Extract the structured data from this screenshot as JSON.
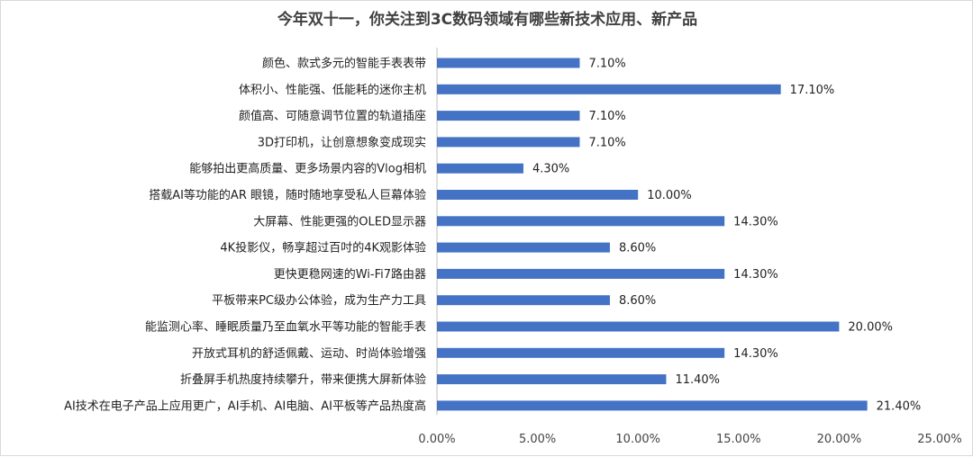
{
  "chart_data": {
    "type": "bar",
    "orientation": "horizontal",
    "title": "今年双十一，你关注到3C数码领域有哪些新技术应用、新产品",
    "categories": [
      "颜色、款式多元的智能手表表带",
      "体积小、性能强、低能耗的迷你主机",
      "颜值高、可随意调节位置的轨道插座",
      "3D打印机，让创意想象变成现实",
      "能够拍出更高质量、更多场景内容的Vlog相机",
      "搭载AI等功能的AR 眼镜，随时随地享受私人巨幕体验",
      "大屏幕、性能更强的OLED显示器",
      "4K投影仪，畅享超过百吋的4K观影体验",
      "更快更稳网速的Wi-Fi7路由器",
      "平板带来PC级办公体验，成为生产力工具",
      "能监测心率、睡眠质量乃至血氧水平等功能的智能手表",
      "开放式耳机的舒适佩戴、运动、时尚体验增强",
      "折叠屏手机热度持续攀升，带来便携大屏新体验",
      "AI技术在电子产品上应用更广，AI手机、AI电脑、AI平板等产品热度高"
    ],
    "values": [
      7.1,
      17.1,
      7.1,
      7.1,
      4.3,
      10.0,
      14.3,
      8.6,
      14.3,
      8.6,
      20.0,
      14.3,
      11.4,
      21.4
    ],
    "value_labels": [
      "7.10%",
      "17.10%",
      "7.10%",
      "7.10%",
      "4.30%",
      "10.00%",
      "14.30%",
      "8.60%",
      "14.30%",
      "8.60%",
      "20.00%",
      "14.30%",
      "11.40%",
      "21.40%"
    ],
    "x_ticks": [
      "0.00%",
      "5.00%",
      "10.00%",
      "15.00%",
      "20.00%",
      "25.00%"
    ],
    "xlim": [
      0,
      25
    ],
    "grid": false,
    "legend": "none",
    "bar_color": "#4472c4"
  }
}
